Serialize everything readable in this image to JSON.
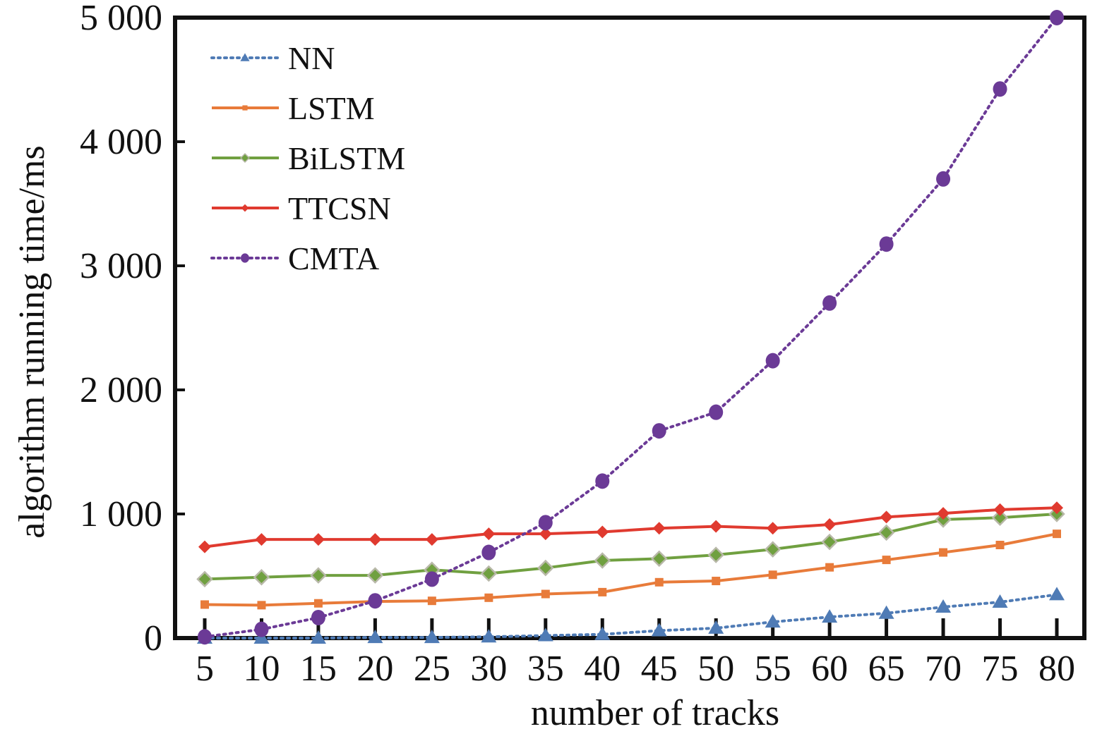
{
  "chart_data": {
    "type": "line",
    "xlabel": "number of tracks",
    "ylabel": "algorithm running time/ms",
    "x": [
      5,
      10,
      15,
      20,
      25,
      30,
      35,
      40,
      45,
      50,
      55,
      60,
      65,
      70,
      75,
      80
    ],
    "ylim": [
      0,
      5000
    ],
    "y_ticks": [
      0,
      1000,
      2000,
      3000,
      4000,
      5000
    ],
    "y_tick_labels": [
      "0",
      "1 000",
      "2 000",
      "3 000",
      "4 000",
      "5 000"
    ],
    "x_tick_labels": [
      "5",
      "10",
      "15",
      "20",
      "25",
      "30",
      "35",
      "40",
      "45",
      "50",
      "55",
      "60",
      "65",
      "70",
      "75",
      "80"
    ],
    "grid": false,
    "legend_position": "top-left",
    "series": [
      {
        "name": "NN",
        "color": "#4f7bb5",
        "line_style": "dotted",
        "marker": "triangle",
        "values": [
          0,
          0,
          0,
          5,
          5,
          10,
          20,
          30,
          60,
          80,
          130,
          170,
          200,
          250,
          290,
          350
        ]
      },
      {
        "name": "LSTM",
        "color": "#e87b3a",
        "line_style": "solid",
        "marker": "square",
        "values": [
          270,
          265,
          280,
          295,
          300,
          325,
          355,
          370,
          450,
          460,
          510,
          570,
          630,
          690,
          750,
          840
        ]
      },
      {
        "name": "BiLSTM",
        "color": "#70a040",
        "line_style": "solid",
        "marker": "diamond",
        "values": [
          475,
          490,
          505,
          505,
          550,
          520,
          565,
          625,
          640,
          670,
          715,
          775,
          850,
          955,
          970,
          1000
        ]
      },
      {
        "name": "TTCSN",
        "color": "#e03a2f",
        "line_style": "solid",
        "marker": "diamond-small",
        "values": [
          735,
          795,
          795,
          795,
          795,
          840,
          840,
          855,
          885,
          900,
          885,
          915,
          975,
          1005,
          1035,
          1050
        ]
      },
      {
        "name": "CMTA",
        "color": "#6b3a96",
        "line_style": "dotted",
        "marker": "circle",
        "values": [
          10,
          70,
          165,
          300,
          475,
          690,
          930,
          1265,
          1670,
          1820,
          2235,
          2700,
          3175,
          3700,
          4425,
          5000
        ]
      }
    ]
  }
}
